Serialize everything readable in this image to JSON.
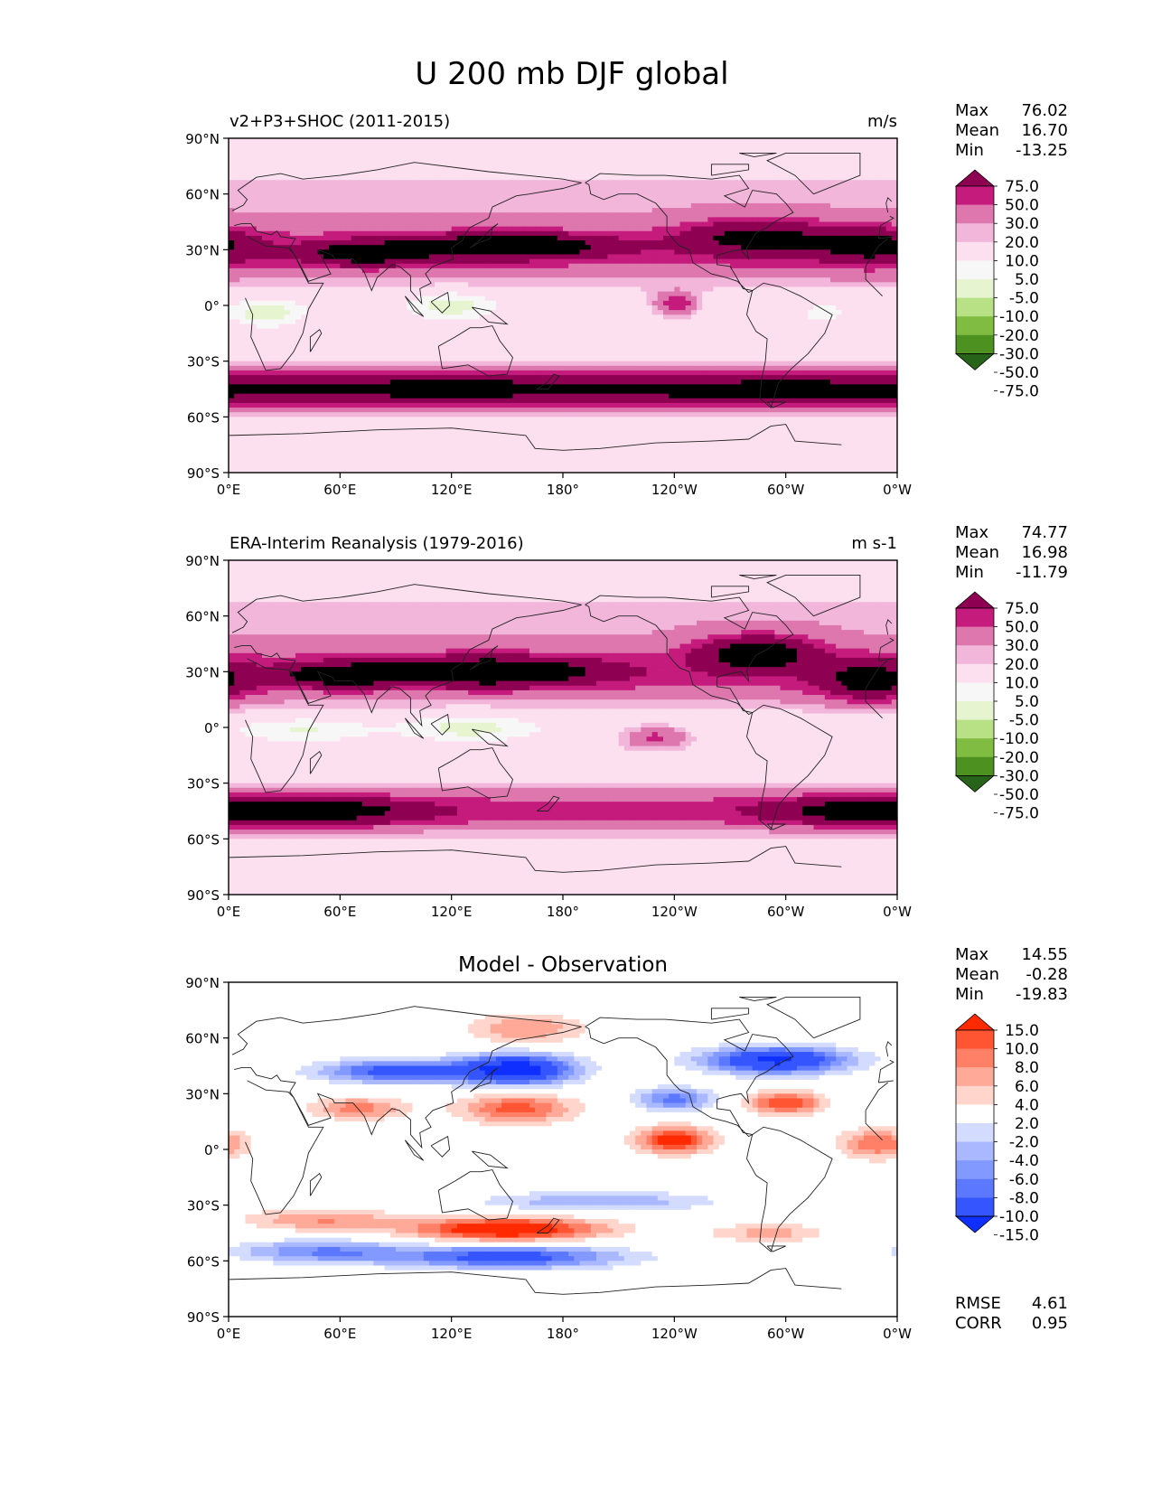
{
  "page_title": "U 200 mb DJF global",
  "palettes": {
    "seq": [
      "#276419",
      "#4d9221",
      "#7fbc41",
      "#b8e186",
      "#e6f5d0",
      "#f7f7f7",
      "#fde0ef",
      "#f1b6da",
      "#de77ae",
      "#c51b7d",
      "#8e0152"
    ],
    "diff": [
      "#0f2fff",
      "#3556ff",
      "#5b78ff",
      "#8299ff",
      "#aab9ff",
      "#d3dbff",
      "#ffffff",
      "#ffd5cc",
      "#ffaa99",
      "#ff8066",
      "#ff5533",
      "#ff2a00"
    ]
  },
  "axes": {
    "lat_ticks": [
      "90°N",
      "60°N",
      "30°N",
      "0°",
      "30°S",
      "60°S",
      "90°S"
    ],
    "lon_ticks": [
      "0°E",
      "60°E",
      "120°E",
      "180°",
      "120°W",
      "60°W",
      "0°W"
    ]
  },
  "panels": [
    {
      "key": "model",
      "title_left": "v2+P3+SHOC (2011-2015)",
      "title_center": "",
      "title_right": "m/s",
      "stats": [
        {
          "label": "Max",
          "value": "76.02"
        },
        {
          "label": "Mean",
          "value": "16.70"
        },
        {
          "label": "Min",
          "value": "-13.25"
        }
      ],
      "colorbar": {
        "palette": "seq",
        "labels": [
          "75.0",
          "50.0",
          "30.0",
          "20.0",
          "10.0",
          "5.0",
          "-5.0",
          "-10.0",
          "-20.0",
          "-30.0",
          "-50.0",
          "-75.0"
        ]
      },
      "extra_stats": []
    },
    {
      "key": "obs",
      "title_left": "ERA-Interim Reanalysis (1979-2016)",
      "title_center": "",
      "title_right": "m s-1",
      "stats": [
        {
          "label": "Max",
          "value": "74.77"
        },
        {
          "label": "Mean",
          "value": "16.98"
        },
        {
          "label": "Min",
          "value": "-11.79"
        }
      ],
      "colorbar": {
        "palette": "seq",
        "labels": [
          "75.0",
          "50.0",
          "30.0",
          "20.0",
          "10.0",
          "5.0",
          "-5.0",
          "-10.0",
          "-20.0",
          "-30.0",
          "-50.0",
          "-75.0"
        ]
      },
      "extra_stats": []
    },
    {
      "key": "diff",
      "title_left": "",
      "title_center": "Model - Observation",
      "title_right": "",
      "stats": [
        {
          "label": "Max",
          "value": "14.55"
        },
        {
          "label": "Mean",
          "value": "-0.28"
        },
        {
          "label": "Min",
          "value": "-19.83"
        }
      ],
      "colorbar": {
        "palette": "diff",
        "labels": [
          "15.0",
          "10.0",
          "8.0",
          "6.0",
          "4.0",
          "2.0",
          "-2.0",
          "-4.0",
          "-6.0",
          "-8.0",
          "-10.0",
          "-15.0"
        ]
      },
      "extra_stats": [
        {
          "label": "RMSE",
          "value": "4.61"
        },
        {
          "label": "CORR",
          "value": "0.95"
        }
      ]
    }
  ],
  "chart_data": [
    {
      "type": "heatmap",
      "title": "v2+P3+SHOC (2011-2015)",
      "variable": "U 200 mb DJF",
      "units": "m/s",
      "xlabel": "",
      "ylabel": "",
      "xlim": [
        0,
        360
      ],
      "ylim": [
        -90,
        90
      ],
      "levels": [
        -75,
        -50,
        -30,
        -20,
        -10,
        -5,
        5,
        10,
        20,
        30,
        50,
        75
      ],
      "max": 76.02,
      "mean": 16.7,
      "min": -13.25,
      "features": [
        {
          "lon": 150,
          "lat": 32,
          "u": 65,
          "slon": 48,
          "slat": 6
        },
        {
          "lon": 75,
          "lat": 28,
          "u": 50,
          "slon": 32,
          "slat": 6
        },
        {
          "lon": 285,
          "lat": 37,
          "u": 42,
          "slon": 38,
          "slat": 9
        },
        {
          "lon": 345,
          "lat": 32,
          "u": 40,
          "slon": 28,
          "slat": 9
        },
        {
          "lon": 120,
          "lat": -45,
          "u": 38,
          "slon": 120,
          "slat": 7
        },
        {
          "lon": 300,
          "lat": -46,
          "u": 38,
          "slon": 75,
          "slat": 7
        },
        {
          "lon": 241,
          "lat": 1,
          "u": 30,
          "slon": 12,
          "slat": 6
        },
        {
          "lon": 20,
          "lat": -5,
          "u": -13,
          "slon": 20,
          "slat": 8
        },
        {
          "lon": 120,
          "lat": 0,
          "u": -12,
          "slon": 22,
          "slat": 9
        },
        {
          "lon": 320,
          "lat": -5,
          "u": -9,
          "slon": 10,
          "slat": 5
        }
      ]
    },
    {
      "type": "heatmap",
      "title": "ERA-Interim Reanalysis (1979-2016)",
      "variable": "U 200 mb DJF",
      "units": "m s-1",
      "xlabel": "",
      "ylabel": "",
      "xlim": [
        0,
        360
      ],
      "ylim": [
        -90,
        90
      ],
      "levels": [
        -75,
        -50,
        -30,
        -20,
        -10,
        -5,
        5,
        10,
        20,
        30,
        50,
        75
      ],
      "max": 74.77,
      "mean": 16.98,
      "min": -11.79,
      "features": [
        {
          "lon": 140,
          "lat": 30,
          "u": 65,
          "slon": 55,
          "slat": 7
        },
        {
          "lon": 60,
          "lat": 28,
          "u": 50,
          "slon": 30,
          "slat": 6
        },
        {
          "lon": 285,
          "lat": 40,
          "u": 55,
          "slon": 30,
          "slat": 9
        },
        {
          "lon": 345,
          "lat": 25,
          "u": 45,
          "slon": 25,
          "slat": 10
        },
        {
          "lon": 50,
          "lat": -45,
          "u": 42,
          "slon": 50,
          "slat": 7
        },
        {
          "lon": 340,
          "lat": -45,
          "u": 40,
          "slon": 45,
          "slat": 7
        },
        {
          "lon": 230,
          "lat": -5,
          "u": 22,
          "slon": 18,
          "slat": 6
        },
        {
          "lon": 130,
          "lat": 0,
          "u": -11,
          "slon": 35,
          "slat": 9
        },
        {
          "lon": 40,
          "lat": -2,
          "u": -9,
          "slon": 35,
          "slat": 8
        }
      ]
    },
    {
      "type": "heatmap",
      "title": "Model - Observation",
      "variable": "U 200 mb DJF difference",
      "units": "m/s",
      "xlabel": "",
      "ylabel": "",
      "xlim": [
        0,
        360
      ],
      "ylim": [
        -90,
        90
      ],
      "levels": [
        -15,
        -10,
        -8,
        -6,
        -4,
        -2,
        2,
        4,
        6,
        8,
        10,
        15
      ],
      "max": 14.55,
      "mean": -0.28,
      "min": -19.83,
      "rmse": 4.61,
      "corr": 0.95,
      "features": [
        {
          "lon": 155,
          "lat": 43,
          "u": -18,
          "slon": 30,
          "slat": 8
        },
        {
          "lon": 90,
          "lat": 42,
          "u": -12,
          "slon": 40,
          "slat": 6
        },
        {
          "lon": 295,
          "lat": 48,
          "u": -16,
          "slon": 38,
          "slat": 7
        },
        {
          "lon": 240,
          "lat": 27,
          "u": -9,
          "slon": 20,
          "slat": 6
        },
        {
          "lon": 155,
          "lat": 22,
          "u": 9,
          "slon": 30,
          "slat": 8
        },
        {
          "lon": 70,
          "lat": 22,
          "u": 7,
          "slon": 25,
          "slat": 6
        },
        {
          "lon": 300,
          "lat": 25,
          "u": 10,
          "slon": 20,
          "slat": 6
        },
        {
          "lon": 160,
          "lat": 65,
          "u": 6,
          "slon": 30,
          "slat": 8
        },
        {
          "lon": 240,
          "lat": 5,
          "u": 12,
          "slon": 20,
          "slat": 7
        },
        {
          "lon": 350,
          "lat": 3,
          "u": 8,
          "slon": 20,
          "slat": 8
        },
        {
          "lon": 150,
          "lat": -43,
          "u": 14,
          "slon": 50,
          "slat": 6
        },
        {
          "lon": 50,
          "lat": -38,
          "u": 6,
          "slon": 40,
          "slat": 6
        },
        {
          "lon": 150,
          "lat": -58,
          "u": -12,
          "slon": 60,
          "slat": 6
        },
        {
          "lon": 50,
          "lat": -55,
          "u": -8,
          "slon": 45,
          "slat": 6
        },
        {
          "lon": 200,
          "lat": -28,
          "u": -6,
          "slon": 60,
          "slat": 5
        },
        {
          "lon": 290,
          "lat": -45,
          "u": 5,
          "slon": 30,
          "slat": 5
        }
      ]
    }
  ]
}
